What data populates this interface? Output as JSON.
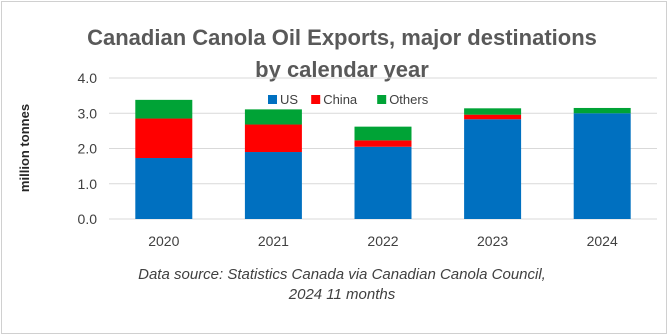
{
  "chart_data": {
    "type": "bar",
    "stacked": true,
    "title": "Canadian  Canola Oil Exports, major destinations by calendar year",
    "title_lines": [
      "Canadian  Canola Oil Exports, major destinations",
      "by calendar year"
    ],
    "ylabel": "million tonnes",
    "xlabel": "",
    "ylim": [
      0,
      4.0
    ],
    "yticks": [
      "0.0",
      "1.0",
      "2.0",
      "3.0",
      "4.0"
    ],
    "grid": true,
    "legend_position": "top",
    "categories": [
      "2020",
      "2021",
      "2022",
      "2023",
      "2024"
    ],
    "series": [
      {
        "name": "US",
        "color": "#0070C0",
        "values": [
          1.73,
          1.9,
          2.05,
          2.83,
          3.0
        ]
      },
      {
        "name": "China",
        "color": "#FF0000",
        "values": [
          1.12,
          0.78,
          0.18,
          0.13,
          0.0
        ]
      },
      {
        "name": "Others",
        "color": "#00A336",
        "values": [
          0.53,
          0.43,
          0.39,
          0.18,
          0.15
        ]
      }
    ],
    "source_lines": [
      "Data source: Statistics Canada via Canadian Canola Council,",
      "2024 11 months"
    ]
  }
}
